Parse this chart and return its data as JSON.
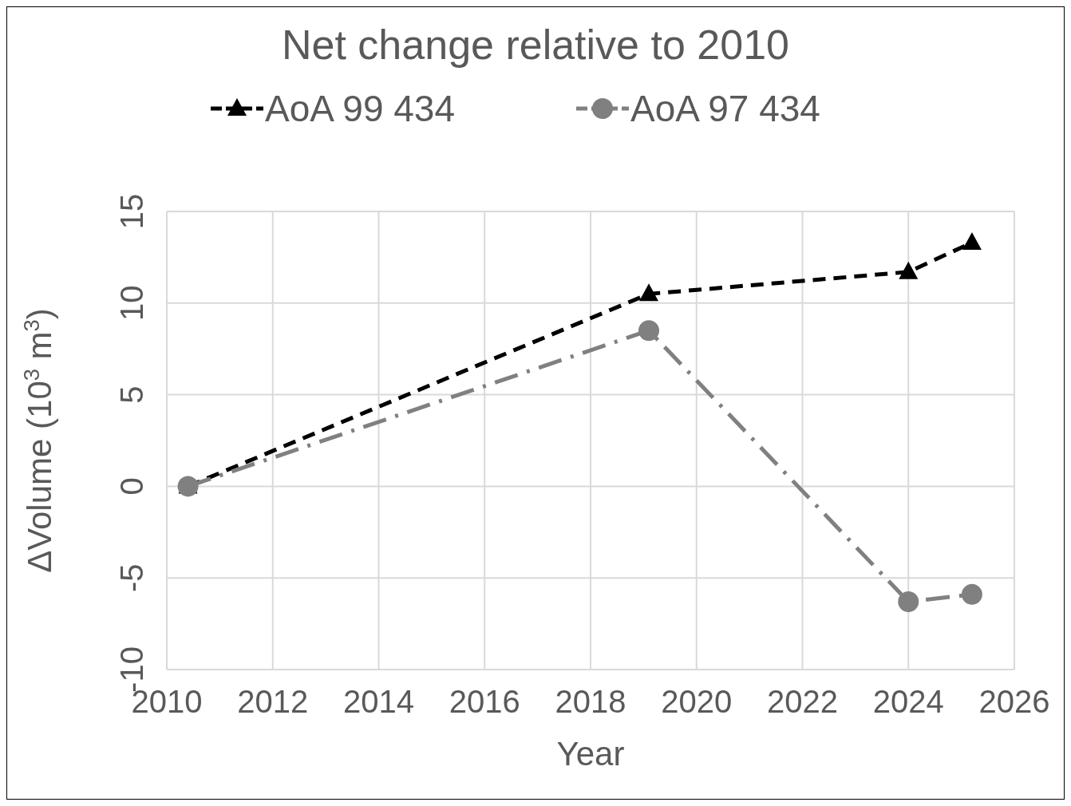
{
  "chart_data": {
    "type": "line",
    "title": "Net change relative to 2010",
    "xlabel": "Year",
    "ylabel": "ΔVolume (10$^{3}$ m$^{3}$)",
    "xlim": [
      2010,
      2026
    ],
    "xticks": [
      2010,
      2012,
      2014,
      2016,
      2018,
      2020,
      2022,
      2024,
      2026
    ],
    "ylim": [
      -10,
      15
    ],
    "yticks": [
      -10,
      -5,
      0,
      5,
      10,
      15
    ],
    "grid": true,
    "legend": "top",
    "series": [
      {
        "name": "AoA 99 434",
        "color": "#000000",
        "marker": "triangle",
        "line_style": "dashed",
        "x": [
          2010.4,
          2019.1,
          2024.0,
          2025.2
        ],
        "values": [
          0,
          10.5,
          11.7,
          13.3
        ]
      },
      {
        "name": "AoA 97 434",
        "color": "#808080",
        "marker": "circle",
        "line_style": "dashdot",
        "x": [
          2010.4,
          2019.1,
          2024.0,
          2025.2
        ],
        "values": [
          0,
          8.5,
          -6.3,
          -5.9
        ]
      }
    ]
  }
}
